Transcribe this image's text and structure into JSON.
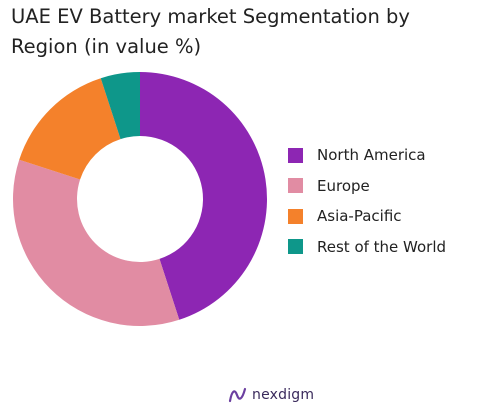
{
  "chart_data": {
    "type": "pie",
    "donut": true,
    "title_lines": [
      "UAE EV Battery market Segmentation by",
      "Region (in value %)"
    ],
    "categories": [
      "North America",
      "Europe",
      "Asia-Pacific",
      "Rest of the World"
    ],
    "values": [
      45,
      35,
      15,
      5
    ],
    "colors": [
      "#8d26b3",
      "#e18ca3",
      "#f4812b",
      "#0e978a"
    ],
    "legend_position": "right",
    "start_angle_degrees": 0,
    "direction": "clockwise"
  },
  "brand": {
    "name": "nexdigm",
    "color": "#6b3fa0"
  }
}
